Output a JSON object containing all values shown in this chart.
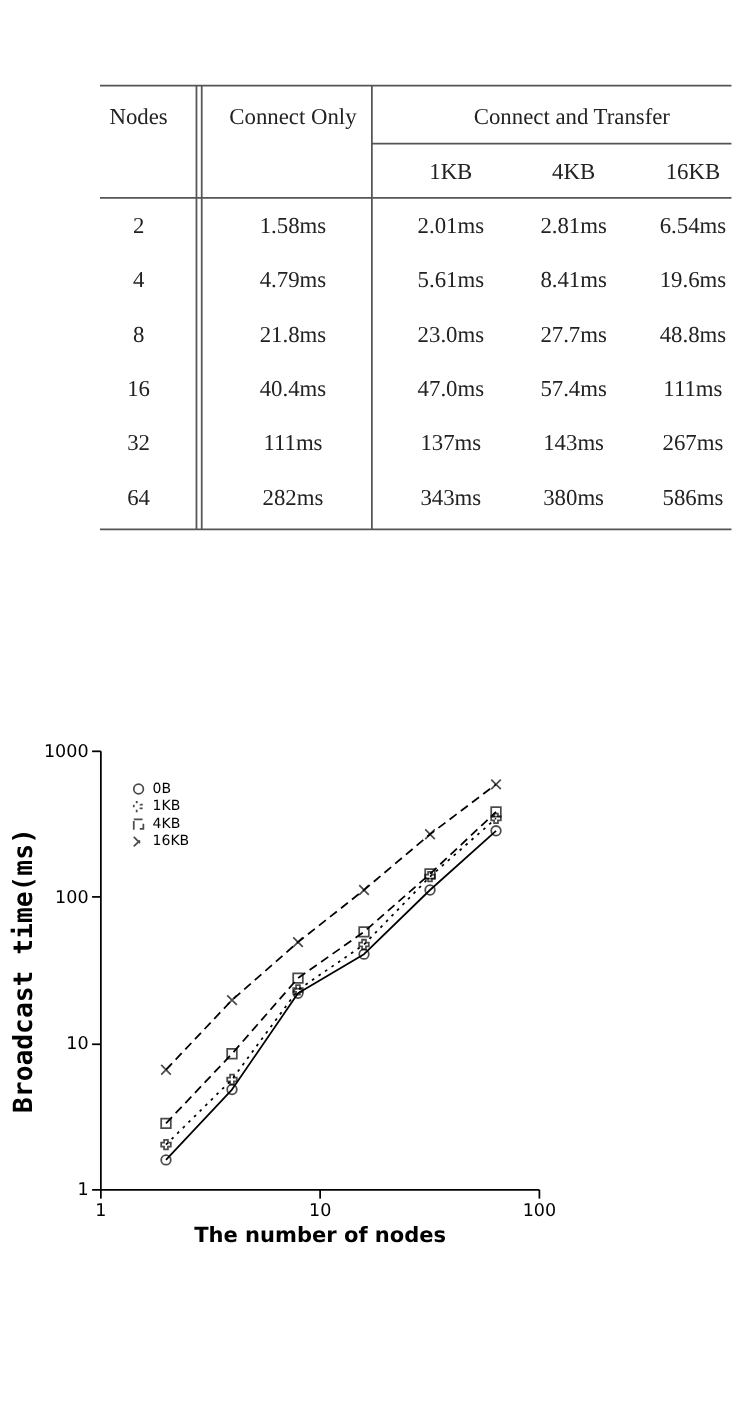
{
  "chart_data": [
    {
      "type": "other",
      "annotations": [
        "Nodes",
        "Connect Only",
        "Connect and Transfer",
        "1KB",
        "4KB",
        "16KB",
        "2",
        "1.58ms",
        "2.01ms",
        "2.81ms",
        "6.54ms",
        "4",
        "4.79ms",
        "5.61ms",
        "8.41ms",
        "19.6ms",
        "8",
        "21.8ms",
        "23.0ms",
        "27.7ms",
        "48.8ms",
        "16",
        "40.4ms",
        "47.0ms",
        "57.4ms",
        "111ms",
        "32",
        "111ms",
        "137ms",
        "143ms",
        "267ms",
        "64",
        "282ms",
        "343ms",
        "380ms",
        "586ms"
      ]
    },
    {
      "type": "line",
      "xlabel": "The number of nodes",
      "ylabel": "Broadcast time(ms)",
      "x": [
        2,
        4,
        8,
        16,
        32,
        64
      ],
      "series": [
        {
          "name": "0B",
          "color": "#000000",
          "marker": "circle",
          "line_style": "solid",
          "values": [
            1.58,
            4.79,
            21.8,
            40.4,
            111,
            282
          ]
        },
        {
          "name": "1KB",
          "color": "#000000",
          "marker": "cross",
          "line_style": "dotted",
          "values": [
            2.01,
            5.61,
            23.0,
            47.0,
            137,
            343
          ]
        },
        {
          "name": "4KB",
          "color": "#000000",
          "marker": "square",
          "line_style": "dashed",
          "values": [
            2.81,
            8.41,
            27.7,
            57.4,
            143,
            380
          ]
        },
        {
          "name": "16KB",
          "color": "#000000",
          "marker": "cross",
          "line_style": "dashed",
          "values": [
            6.54,
            19.6,
            48.8,
            111,
            267,
            586
          ]
        }
      ],
      "log": "xy",
      "xlim": [
        1,
        100
      ],
      "xticks": [
        1,
        10,
        100
      ],
      "ylim": [
        1,
        1000
      ],
      "yticks": [
        1,
        10,
        100,
        1000
      ],
      "grid": false,
      "legend": "top left"
    }
  ]
}
